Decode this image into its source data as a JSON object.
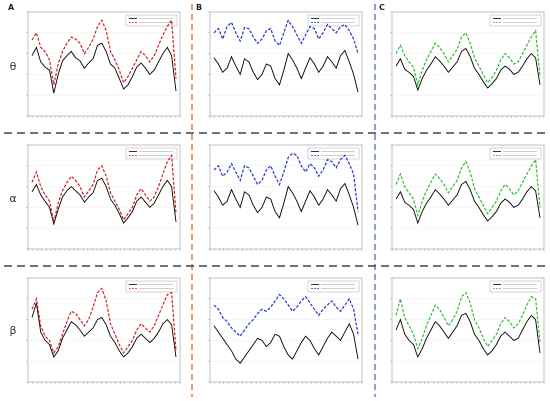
{
  "figure": {
    "column_labels": [
      "A",
      "B",
      "C"
    ],
    "row_labels": [
      "θ",
      "α",
      "β"
    ],
    "colors": {
      "observed": "#000000",
      "column_series": [
        "#cc2222",
        "#2233cc",
        "#33bb33"
      ],
      "sep_orange": "#d2691e",
      "sep_blue": "#4a6fb0",
      "sep_dark": "#444444"
    }
  },
  "chart_data": [
    {
      "type": "line",
      "row": "θ",
      "column": "A",
      "grid": true,
      "legend": "top-right",
      "series": [
        {
          "values": [
            0.58,
            0.66,
            0.52,
            0.47,
            0.44,
            0.22,
            0.4,
            0.53,
            0.58,
            0.62,
            0.56,
            0.53,
            0.46,
            0.51,
            0.55,
            0.68,
            0.7,
            0.62,
            0.5,
            0.46,
            0.36,
            0.26,
            0.3,
            0.38,
            0.47,
            0.51,
            0.46,
            0.4,
            0.44,
            0.52,
            0.6,
            0.66,
            0.58,
            0.24
          ]
        },
        {
          "values": [
            0.73,
            0.8,
            0.66,
            0.62,
            0.54,
            0.3,
            0.5,
            0.62,
            0.7,
            0.76,
            0.74,
            0.7,
            0.6,
            0.66,
            0.74,
            0.86,
            0.92,
            0.82,
            0.62,
            0.54,
            0.44,
            0.32,
            0.38,
            0.46,
            0.54,
            0.62,
            0.58,
            0.52,
            0.58,
            0.68,
            0.78,
            0.86,
            0.92,
            0.36
          ]
        }
      ]
    },
    {
      "type": "line",
      "row": "θ",
      "column": "B",
      "grid": true,
      "legend": "top-right",
      "series": [
        {
          "values": [
            0.56,
            0.5,
            0.42,
            0.46,
            0.57,
            0.48,
            0.4,
            0.55,
            0.52,
            0.42,
            0.35,
            0.4,
            0.5,
            0.48,
            0.36,
            0.3,
            0.44,
            0.6,
            0.54,
            0.46,
            0.36,
            0.46,
            0.56,
            0.5,
            0.42,
            0.48,
            0.57,
            0.52,
            0.46,
            0.58,
            0.63,
            0.52,
            0.4,
            0.23
          ]
        },
        {
          "values": [
            0.8,
            0.84,
            0.74,
            0.86,
            0.9,
            0.8,
            0.72,
            0.85,
            0.84,
            0.76,
            0.7,
            0.74,
            0.82,
            0.84,
            0.72,
            0.68,
            0.8,
            0.92,
            0.86,
            0.78,
            0.7,
            0.78,
            0.86,
            0.84,
            0.74,
            0.8,
            0.88,
            0.84,
            0.8,
            0.86,
            0.88,
            0.82,
            0.74,
            0.6
          ]
        }
      ]
    },
    {
      "type": "line",
      "row": "θ",
      "column": "C",
      "grid": true,
      "legend": "top-right",
      "series": [
        {
          "values": [
            0.48,
            0.55,
            0.45,
            0.42,
            0.38,
            0.25,
            0.36,
            0.44,
            0.5,
            0.57,
            0.53,
            0.48,
            0.42,
            0.47,
            0.52,
            0.62,
            0.65,
            0.57,
            0.46,
            0.4,
            0.33,
            0.27,
            0.31,
            0.36,
            0.44,
            0.48,
            0.45,
            0.4,
            0.42,
            0.48,
            0.55,
            0.6,
            0.56,
            0.3
          ]
        },
        {
          "values": [
            0.6,
            0.68,
            0.58,
            0.52,
            0.47,
            0.3,
            0.44,
            0.54,
            0.62,
            0.7,
            0.66,
            0.6,
            0.52,
            0.58,
            0.64,
            0.76,
            0.8,
            0.7,
            0.56,
            0.48,
            0.4,
            0.32,
            0.37,
            0.44,
            0.54,
            0.6,
            0.56,
            0.5,
            0.52,
            0.6,
            0.68,
            0.76,
            0.82,
            0.38
          ]
        }
      ]
    },
    {
      "type": "line",
      "row": "α",
      "column": "A",
      "grid": true,
      "legend": "top-right",
      "series": [
        {
          "values": [
            0.55,
            0.62,
            0.52,
            0.46,
            0.4,
            0.24,
            0.38,
            0.5,
            0.56,
            0.6,
            0.56,
            0.52,
            0.45,
            0.5,
            0.54,
            0.66,
            0.68,
            0.6,
            0.48,
            0.42,
            0.34,
            0.25,
            0.3,
            0.36,
            0.46,
            0.5,
            0.45,
            0.4,
            0.44,
            0.52,
            0.6,
            0.66,
            0.6,
            0.26
          ]
        },
        {
          "values": [
            0.64,
            0.74,
            0.6,
            0.52,
            0.46,
            0.26,
            0.44,
            0.56,
            0.64,
            0.7,
            0.66,
            0.6,
            0.5,
            0.56,
            0.62,
            0.76,
            0.8,
            0.7,
            0.54,
            0.46,
            0.38,
            0.28,
            0.34,
            0.4,
            0.52,
            0.58,
            0.52,
            0.46,
            0.5,
            0.6,
            0.72,
            0.84,
            0.9,
            0.34
          ]
        }
      ]
    },
    {
      "type": "line",
      "row": "α",
      "column": "B",
      "grid": true,
      "legend": "top-right",
      "series": [
        {
          "values": [
            0.56,
            0.5,
            0.42,
            0.46,
            0.57,
            0.48,
            0.4,
            0.55,
            0.52,
            0.42,
            0.35,
            0.4,
            0.5,
            0.48,
            0.36,
            0.3,
            0.44,
            0.6,
            0.54,
            0.46,
            0.36,
            0.46,
            0.56,
            0.5,
            0.42,
            0.48,
            0.57,
            0.52,
            0.46,
            0.58,
            0.63,
            0.52,
            0.4,
            0.23
          ]
        },
        {
          "values": [
            0.76,
            0.8,
            0.7,
            0.74,
            0.82,
            0.74,
            0.66,
            0.8,
            0.78,
            0.7,
            0.62,
            0.66,
            0.76,
            0.8,
            0.7,
            0.62,
            0.74,
            0.88,
            0.92,
            0.9,
            0.8,
            0.74,
            0.82,
            0.78,
            0.7,
            0.76,
            0.86,
            0.84,
            0.78,
            0.86,
            0.9,
            0.82,
            0.72,
            0.36
          ]
        }
      ]
    },
    {
      "type": "line",
      "row": "α",
      "column": "C",
      "grid": true,
      "legend": "top-right",
      "series": [
        {
          "values": [
            0.48,
            0.55,
            0.45,
            0.42,
            0.38,
            0.25,
            0.36,
            0.44,
            0.5,
            0.57,
            0.53,
            0.48,
            0.42,
            0.47,
            0.52,
            0.62,
            0.65,
            0.57,
            0.46,
            0.4,
            0.33,
            0.27,
            0.31,
            0.36,
            0.44,
            0.48,
            0.45,
            0.4,
            0.42,
            0.48,
            0.55,
            0.6,
            0.56,
            0.3
          ]
        },
        {
          "values": [
            0.62,
            0.72,
            0.6,
            0.54,
            0.48,
            0.32,
            0.46,
            0.56,
            0.64,
            0.72,
            0.68,
            0.62,
            0.54,
            0.6,
            0.66,
            0.78,
            0.84,
            0.74,
            0.58,
            0.5,
            0.42,
            0.34,
            0.4,
            0.46,
            0.56,
            0.62,
            0.58,
            0.52,
            0.56,
            0.64,
            0.72,
            0.8,
            0.86,
            0.4
          ]
        }
      ]
    },
    {
      "type": "line",
      "row": "β",
      "column": "A",
      "grid": true,
      "legend": "top-right",
      "series": [
        {
          "values": [
            0.62,
            0.76,
            0.48,
            0.4,
            0.36,
            0.24,
            0.3,
            0.42,
            0.5,
            0.58,
            0.55,
            0.5,
            0.44,
            0.48,
            0.52,
            0.6,
            0.62,
            0.55,
            0.44,
            0.38,
            0.3,
            0.24,
            0.28,
            0.34,
            0.42,
            0.46,
            0.42,
            0.38,
            0.42,
            0.48,
            0.56,
            0.6,
            0.55,
            0.24
          ]
        },
        {
          "values": [
            0.7,
            0.8,
            0.54,
            0.44,
            0.4,
            0.28,
            0.34,
            0.46,
            0.58,
            0.68,
            0.66,
            0.6,
            0.54,
            0.6,
            0.72,
            0.86,
            0.9,
            0.78,
            0.56,
            0.46,
            0.36,
            0.28,
            0.34,
            0.4,
            0.5,
            0.56,
            0.52,
            0.48,
            0.54,
            0.64,
            0.74,
            0.84,
            0.86,
            0.3
          ]
        }
      ]
    },
    {
      "type": "line",
      "row": "β",
      "column": "B",
      "grid": true,
      "legend": "top-right",
      "series": [
        {
          "values": [
            0.54,
            0.48,
            0.42,
            0.36,
            0.3,
            0.22,
            0.18,
            0.24,
            0.3,
            0.36,
            0.42,
            0.4,
            0.34,
            0.38,
            0.46,
            0.44,
            0.34,
            0.26,
            0.22,
            0.3,
            0.38,
            0.44,
            0.4,
            0.32,
            0.26,
            0.34,
            0.42,
            0.48,
            0.44,
            0.4,
            0.48,
            0.56,
            0.46,
            0.22
          ]
        },
        {
          "values": [
            0.74,
            0.7,
            0.62,
            0.58,
            0.52,
            0.48,
            0.44,
            0.5,
            0.56,
            0.6,
            0.66,
            0.7,
            0.68,
            0.72,
            0.78,
            0.84,
            0.8,
            0.74,
            0.68,
            0.72,
            0.78,
            0.82,
            0.76,
            0.7,
            0.64,
            0.7,
            0.74,
            0.78,
            0.72,
            0.68,
            0.74,
            0.8,
            0.7,
            0.46
          ]
        }
      ]
    },
    {
      "type": "line",
      "row": "β",
      "column": "C",
      "grid": true,
      "legend": "top-right",
      "series": [
        {
          "values": [
            0.5,
            0.6,
            0.46,
            0.4,
            0.36,
            0.24,
            0.32,
            0.42,
            0.5,
            0.58,
            0.54,
            0.48,
            0.42,
            0.48,
            0.54,
            0.64,
            0.66,
            0.58,
            0.46,
            0.4,
            0.32,
            0.26,
            0.3,
            0.36,
            0.44,
            0.48,
            0.44,
            0.4,
            0.42,
            0.5,
            0.58,
            0.64,
            0.6,
            0.28
          ]
        },
        {
          "values": [
            0.64,
            0.8,
            0.62,
            0.54,
            0.46,
            0.32,
            0.42,
            0.54,
            0.64,
            0.74,
            0.7,
            0.62,
            0.54,
            0.6,
            0.68,
            0.82,
            0.86,
            0.76,
            0.6,
            0.52,
            0.42,
            0.34,
            0.4,
            0.46,
            0.56,
            0.62,
            0.58,
            0.52,
            0.56,
            0.64,
            0.74,
            0.82,
            0.8,
            0.38
          ]
        }
      ]
    }
  ]
}
